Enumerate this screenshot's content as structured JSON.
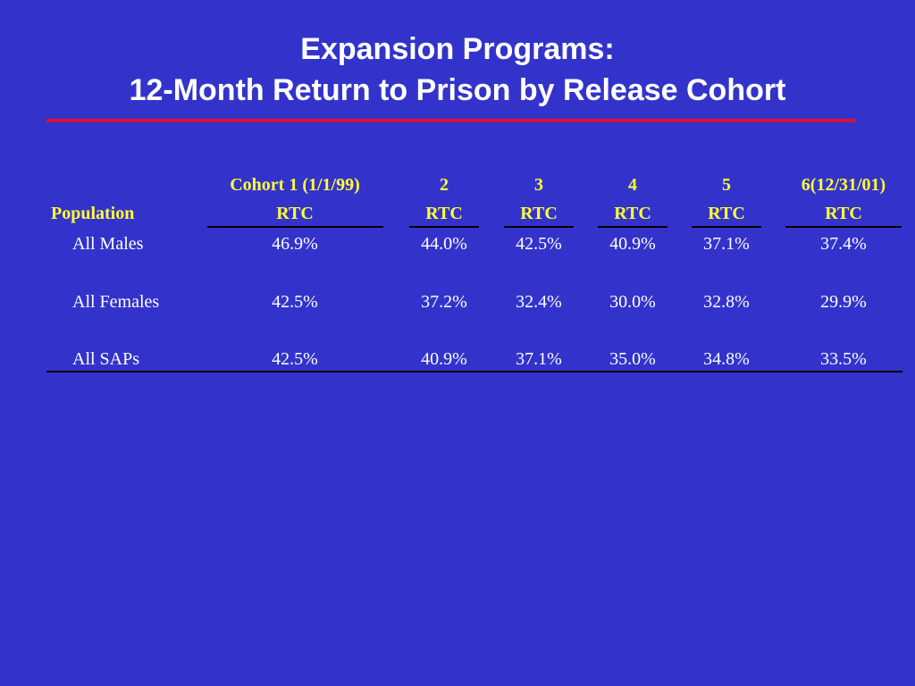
{
  "slide": {
    "title_line1": "Expansion Programs:",
    "title_line2": "12-Month Return to Prison by Release Cohort"
  },
  "table": {
    "population_header": "Population",
    "cohort_headers": [
      "Cohort 1 (1/1/99)",
      "2",
      "3",
      "4",
      "5",
      "6(12/31/01)"
    ],
    "rtc_headers": [
      "RTC",
      "RTC",
      "RTC",
      "RTC",
      "RTC",
      "RTC"
    ],
    "rows": [
      {
        "label": "All Males",
        "values": [
          "46.9%",
          "44.0%",
          "42.5%",
          "40.9%",
          "37.1%",
          "37.4%"
        ]
      },
      {
        "label": "All Females",
        "values": [
          "42.5%",
          "37.2%",
          "32.4%",
          "30.0%",
          "32.8%",
          "29.9%"
        ]
      },
      {
        "label": "All SAPs",
        "values": [
          "42.5%",
          "40.9%",
          "37.1%",
          "35.0%",
          "34.8%",
          "33.5%"
        ]
      }
    ]
  },
  "colors": {
    "background": "#3333cc",
    "title_text": "#ffffff",
    "title_rule": "#dd1133",
    "header_text": "#ffff33",
    "body_text": "#ffffff",
    "table_rules": "#000000"
  }
}
